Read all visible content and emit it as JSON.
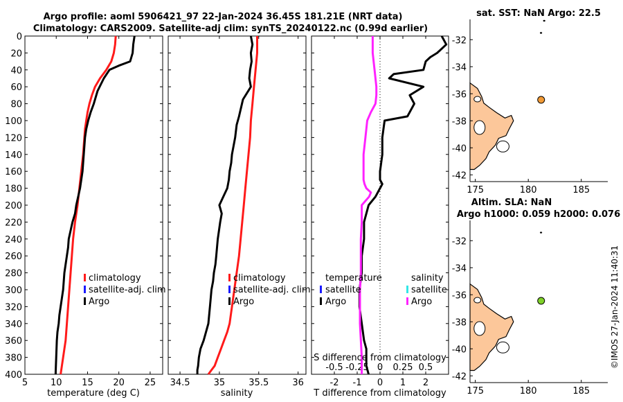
{
  "title": {
    "line1": "Argo profile: aoml 5906421_97 22-Jan-2024 36.45S 181.21E (NRT data)",
    "line2": "Climatology: CARS2009. Satellite-adj clim: synTS_20240122.nc (0.99d earlier)"
  },
  "timestamp": "©IMOS 27-Jan-2024 11:40:31",
  "colors": {
    "climatology": "#ff1a1a",
    "satellite": "#1a1aff",
    "argo": "#000000",
    "sal_satellite": "#33e6e6",
    "sal_argo": "#ff22ff",
    "land": "#fcc79a",
    "sst_marker": "#f19a36",
    "sla_marker": "#7fd12a"
  },
  "chart_data": [
    {
      "type": "line",
      "id": "temperature",
      "xlabel": "temperature (deg C)",
      "xlim": [
        5,
        27
      ],
      "xticks": [
        5,
        10,
        15,
        20,
        25
      ],
      "ylim": [
        0,
        400
      ],
      "yticks": [
        0,
        20,
        40,
        60,
        80,
        100,
        120,
        140,
        160,
        180,
        200,
        220,
        240,
        260,
        280,
        300,
        320,
        340,
        360,
        380,
        400
      ],
      "legend": [
        "climatology",
        "satellite-adj. clim",
        "Argo"
      ],
      "series": [
        {
          "name": "climatology",
          "color": "#ff1a1a",
          "x": [
            19.5,
            19.4,
            19.2,
            18.8,
            18.0,
            17.0,
            16.2,
            15.7,
            15.3,
            15.0,
            14.8,
            14.6,
            14.5,
            14.3,
            14.0,
            13.7,
            13.4,
            13.0,
            12.7,
            12.5,
            12.3,
            12.1,
            11.9,
            11.7,
            11.5,
            11.3,
            11.1,
            10.9,
            10.7
          ],
          "y": [
            0,
            10,
            20,
            30,
            40,
            50,
            60,
            70,
            80,
            90,
            100,
            110,
            120,
            140,
            160,
            180,
            200,
            220,
            240,
            260,
            280,
            300,
            320,
            340,
            360,
            370,
            380,
            390,
            400
          ]
        },
        {
          "name": "Argo",
          "color": "#000000",
          "x": [
            22.5,
            22.4,
            22.3,
            22.2,
            22.0,
            21.8,
            20.0,
            18.5,
            17.6,
            16.6,
            16.0,
            15.5,
            15.1,
            14.8,
            14.6,
            14.4,
            14.2,
            14.0,
            13.8,
            13.5,
            13.2,
            13.0,
            12.6,
            12.3,
            12.0,
            11.9,
            11.7,
            11.5,
            11.3,
            11.1,
            10.9,
            10.7,
            10.5,
            10.4,
            10.2,
            10.1,
            10.0,
            9.9
          ],
          "y": [
            0,
            5,
            10,
            20,
            25,
            30,
            35,
            40,
            50,
            65,
            80,
            90,
            100,
            110,
            120,
            140,
            160,
            170,
            180,
            190,
            200,
            210,
            220,
            230,
            240,
            250,
            260,
            270,
            280,
            300,
            310,
            320,
            330,
            340,
            350,
            360,
            380,
            400
          ]
        }
      ]
    },
    {
      "type": "line",
      "id": "salinity",
      "xlabel": "salinity",
      "xlim": [
        34.35,
        36.1
      ],
      "xticks": [
        34.5,
        35,
        35.5,
        36
      ],
      "ylim": [
        0,
        400
      ],
      "legend": [
        "climatology",
        "satellite-adj. clim",
        "Argo"
      ],
      "series": [
        {
          "name": "climatology",
          "color": "#ff1a1a",
          "x": [
            35.48,
            35.48,
            35.46,
            35.44,
            35.42,
            35.4,
            35.39,
            35.37,
            35.35,
            35.33,
            35.31,
            35.29,
            35.27,
            35.25,
            35.22,
            35.19,
            35.16,
            35.13,
            35.1,
            35.06,
            35.02,
            34.98,
            34.94,
            34.9,
            34.86
          ],
          "y": [
            0,
            20,
            40,
            60,
            80,
            100,
            120,
            140,
            160,
            180,
            200,
            220,
            240,
            260,
            280,
            300,
            320,
            340,
            350,
            360,
            370,
            380,
            390,
            395,
            400
          ]
        },
        {
          "name": "Argo",
          "color": "#000000",
          "x": [
            35.4,
            35.42,
            35.4,
            35.41,
            35.39,
            35.38,
            35.4,
            35.3,
            35.25,
            35.22,
            35.2,
            35.18,
            35.16,
            35.15,
            35.13,
            35.12,
            35.1,
            35.05,
            35.0,
            35.03,
            35.01,
            34.98,
            34.96,
            34.95,
            34.93,
            34.92,
            34.9,
            34.88,
            34.86,
            34.8,
            34.76,
            34.74,
            34.73,
            34.72,
            34.72
          ],
          "y": [
            0,
            10,
            20,
            30,
            40,
            50,
            60,
            75,
            95,
            105,
            120,
            130,
            140,
            150,
            160,
            170,
            180,
            190,
            200,
            210,
            220,
            240,
            260,
            270,
            280,
            290,
            300,
            320,
            340,
            360,
            370,
            380,
            390,
            395,
            400
          ]
        }
      ]
    },
    {
      "type": "line",
      "id": "difference",
      "xlabel": "T difference from climatology",
      "xlabel2": "S difference from climatology",
      "xlim": [
        -3,
        3
      ],
      "xticks": [
        -2,
        -1,
        0,
        1,
        2
      ],
      "xticks2_labels": [
        "-0.5",
        "-0.25",
        "0",
        "0.25",
        "0.5"
      ],
      "xticks2_values": [
        -0.5,
        -0.25,
        0,
        0.25,
        0.5
      ],
      "ylim": [
        0,
        400
      ],
      "legend_temperature": {
        "title": "temperature",
        "items": [
          "satellite",
          "Argo"
        ]
      },
      "legend_salinity": {
        "title": "salinity",
        "items": [
          "satellite",
          "Argo"
        ]
      },
      "series": [
        {
          "name": "T Argo",
          "color": "#000000",
          "x": [
            2.7,
            2.9,
            2.5,
            2.2,
            2.0,
            1.9,
            0.6,
            0.4,
            1.9,
            1.3,
            1.5,
            1.3,
            1.2,
            0.2,
            0.1,
            0.1,
            0.0,
            0.0,
            0.1,
            0.0,
            -0.2,
            -0.5,
            -0.6,
            -0.7,
            -0.7,
            -0.8,
            -0.8,
            -0.9,
            -0.9,
            -0.8,
            -0.7,
            -0.6,
            -0.6,
            -0.6,
            -0.5
          ],
          "y": [
            0,
            10,
            20,
            25,
            30,
            40,
            45,
            50,
            60,
            70,
            80,
            90,
            95,
            100,
            120,
            140,
            160,
            170,
            175,
            180,
            190,
            200,
            210,
            220,
            240,
            260,
            280,
            300,
            320,
            340,
            360,
            370,
            380,
            390,
            400
          ]
        },
        {
          "name": "S Argo",
          "color": "#ff22ff",
          "x": [
            -0.08,
            -0.08,
            -0.06,
            -0.05,
            -0.04,
            -0.04,
            -0.05,
            -0.1,
            -0.14,
            -0.16,
            -0.18,
            -0.18,
            -0.18,
            -0.17,
            -0.15,
            -0.1,
            -0.12,
            -0.2,
            -0.2,
            -0.21,
            -0.21,
            -0.21,
            -0.22,
            -0.22,
            -0.22,
            -0.21,
            -0.2,
            -0.2,
            -0.2
          ],
          "y": [
            0,
            20,
            40,
            50,
            60,
            70,
            80,
            90,
            100,
            120,
            140,
            160,
            170,
            175,
            180,
            185,
            190,
            200,
            220,
            240,
            260,
            280,
            300,
            320,
            340,
            360,
            380,
            390,
            400
          ]
        }
      ]
    },
    {
      "type": "scatter",
      "id": "map-sst",
      "title": "sat. SST: NaN Argo: 22.5",
      "xlim": [
        174.5,
        187.5
      ],
      "ylim": [
        -42.5,
        -30.5
      ],
      "xticks": [
        175,
        180,
        185
      ],
      "yticks": [
        -32,
        -34,
        -36,
        -38,
        -40,
        -42
      ],
      "points": [
        {
          "name": "argo-position",
          "x": 181.21,
          "y": -36.45
        }
      ],
      "islands": [
        {
          "x": 181.5,
          "y": -30.6
        },
        {
          "x": 181.2,
          "y": -31.5
        }
      ]
    },
    {
      "type": "scatter",
      "id": "map-sla",
      "title": "Altim. SLA: NaN",
      "subtitle": "Argo h1000: 0.059 h2000: 0.076",
      "xlim": [
        174.5,
        187.5
      ],
      "ylim": [
        -42.5,
        -30.5
      ],
      "xticks": [
        175,
        180,
        185
      ],
      "yticks": [
        -32,
        -34,
        -36,
        -38,
        -40,
        -42
      ],
      "points": [
        {
          "name": "argo-position",
          "x": 181.21,
          "y": -36.45
        }
      ],
      "islands": [
        {
          "x": 181.2,
          "y": -31.4
        }
      ]
    }
  ]
}
